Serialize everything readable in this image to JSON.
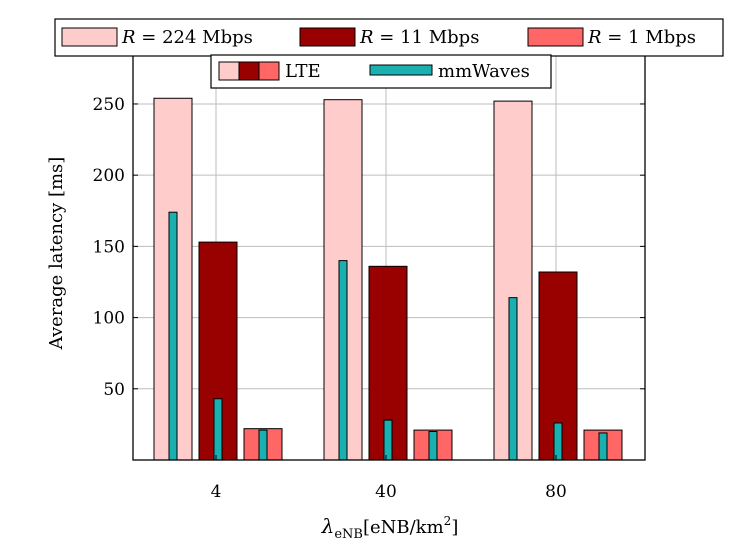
{
  "chart_data": {
    "type": "bar",
    "categories": [
      "4",
      "40",
      "80"
    ],
    "xlabel": "λ_eNB [eNB/km²]",
    "ylabel": "Average latency [ms]",
    "ylim": [
      0,
      290
    ],
    "yticks": [
      50,
      100,
      150,
      200,
      250
    ],
    "grid": true,
    "series": [
      {
        "name": "R = 224 Mbps",
        "tech": "LTE",
        "color": "#ffcccc",
        "values": [
          254,
          253,
          252
        ]
      },
      {
        "name": "R = 11 Mbps",
        "tech": "LTE",
        "color": "#990000",
        "values": [
          153,
          136,
          132
        ]
      },
      {
        "name": "R = 1 Mbps",
        "tech": "LTE",
        "color": "#ff6666",
        "values": [
          22,
          21,
          21
        ]
      },
      {
        "name": "R = 224 Mbps",
        "tech": "mmWaves",
        "color": "#1ab0b0",
        "values": [
          174,
          140,
          114
        ]
      },
      {
        "name": "R = 11 Mbps",
        "tech": "mmWaves",
        "color": "#1ab0b0",
        "values": [
          43,
          28,
          26
        ]
      },
      {
        "name": "R = 1 Mbps",
        "tech": "mmWaves",
        "color": "#1ab0b0",
        "values": [
          21,
          20,
          19
        ]
      }
    ],
    "legend": {
      "placement": "top",
      "rate_entries": [
        {
          "prefix": "R",
          "eq": " = 224 Mbps",
          "color": "#ffcccc"
        },
        {
          "prefix": "R",
          "eq": " = 11 Mbps",
          "color": "#990000"
        },
        {
          "prefix": "R",
          "eq": " = 1 Mbps",
          "color": "#ff6666"
        }
      ],
      "tech_entries": [
        {
          "label": "LTE"
        },
        {
          "label": "mmWaves",
          "color": "#1ab0b0"
        }
      ]
    },
    "xlabel_parts": {
      "symbol": "λ",
      "sub": "eNB",
      "unit": "[eNB/km",
      "sup": "2",
      "close": "]"
    }
  }
}
